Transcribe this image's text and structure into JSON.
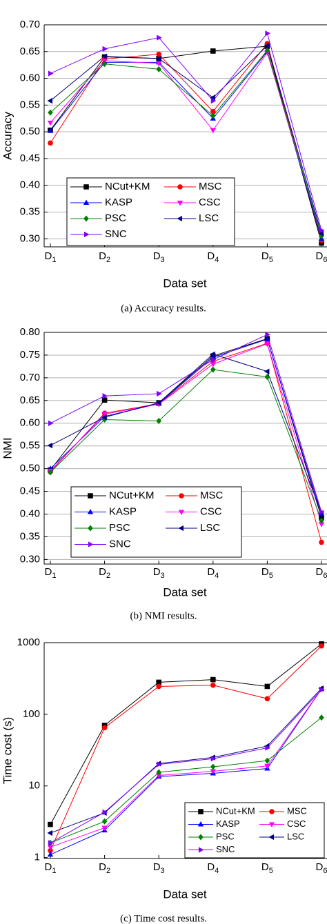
{
  "chart_data": [
    {
      "type": "line",
      "ylabel": "Accuracy",
      "xlabel": "Data set",
      "caption": "(a)  Accuracy results.",
      "categories": [
        "D1",
        "D2",
        "D3",
        "D4",
        "D5",
        "D6"
      ],
      "ylim": [
        0.285,
        0.7
      ],
      "yticks": [
        {
          "value": 0.3,
          "label": "0.30"
        },
        {
          "value": 0.35,
          "label": "0.35"
        },
        {
          "value": 0.4,
          "label": "0.40"
        },
        {
          "value": 0.45,
          "label": "0.45"
        },
        {
          "value": 0.5,
          "label": "0.50"
        },
        {
          "value": 0.55,
          "label": "0.55"
        },
        {
          "value": 0.6,
          "label": "0.60"
        },
        {
          "value": 0.65,
          "label": "0.65"
        },
        {
          "value": 0.7,
          "label": "0.70"
        }
      ],
      "grid": true,
      "legend": "lower left",
      "series": [
        {
          "name": "NCut+KM",
          "color": "#000000",
          "marker": "square",
          "values": [
            0.503,
            0.64,
            0.637,
            0.651,
            0.66,
            0.292
          ]
        },
        {
          "name": "MSC",
          "color": "#ff0000",
          "marker": "circle",
          "values": [
            0.479,
            0.636,
            0.645,
            0.538,
            0.665,
            0.297
          ]
        },
        {
          "name": "KASP",
          "color": "#0000ff",
          "marker": "triangle-up",
          "values": [
            0.502,
            0.63,
            0.63,
            0.525,
            0.65,
            0.3
          ]
        },
        {
          "name": "CSC",
          "color": "#ff00ff",
          "marker": "triangle-down",
          "values": [
            0.517,
            0.633,
            0.628,
            0.503,
            0.648,
            0.305
          ]
        },
        {
          "name": "PSC",
          "color": "#008000",
          "marker": "diamond",
          "values": [
            0.536,
            0.627,
            0.617,
            0.53,
            0.652,
            0.305
          ]
        },
        {
          "name": "LSC",
          "color": "#000080",
          "marker": "triangle-left",
          "values": [
            0.558,
            0.641,
            0.637,
            0.564,
            0.661,
            0.31
          ]
        },
        {
          "name": "SNC",
          "color": "#8000ff",
          "marker": "triangle-right",
          "values": [
            0.609,
            0.655,
            0.676,
            0.558,
            0.684,
            0.316
          ]
        }
      ]
    },
    {
      "type": "line",
      "ylabel": "NMI",
      "xlabel": "Data set",
      "caption": "(b)  NMI results.",
      "categories": [
        "D1",
        "D2",
        "D3",
        "D4",
        "D5",
        "D6"
      ],
      "ylim": [
        0.29,
        0.8
      ],
      "yticks": [
        {
          "value": 0.3,
          "label": "0.30"
        },
        {
          "value": 0.35,
          "label": "0.35"
        },
        {
          "value": 0.4,
          "label": "0.40"
        },
        {
          "value": 0.45,
          "label": "0.45"
        },
        {
          "value": 0.5,
          "label": "0.50"
        },
        {
          "value": 0.55,
          "label": "0.55"
        },
        {
          "value": 0.6,
          "label": "0.60"
        },
        {
          "value": 0.65,
          "label": "0.65"
        },
        {
          "value": 0.7,
          "label": "0.70"
        },
        {
          "value": 0.75,
          "label": "0.75"
        },
        {
          "value": 0.8,
          "label": "0.80"
        }
      ],
      "grid": true,
      "legend": "lower left",
      "series": [
        {
          "name": "NCut+KM",
          "color": "#000000",
          "marker": "square",
          "values": [
            0.497,
            0.651,
            0.645,
            0.748,
            0.786,
            0.392
          ]
        },
        {
          "name": "MSC",
          "color": "#ff0000",
          "marker": "circle",
          "values": [
            0.493,
            0.622,
            0.643,
            0.736,
            0.776,
            0.338
          ]
        },
        {
          "name": "KASP",
          "color": "#0000ff",
          "marker": "triangle-up",
          "values": [
            0.5,
            0.615,
            0.643,
            0.745,
            0.785,
            0.4
          ]
        },
        {
          "name": "CSC",
          "color": "#ff00ff",
          "marker": "triangle-down",
          "values": [
            0.495,
            0.62,
            0.642,
            0.73,
            0.775,
            0.378
          ]
        },
        {
          "name": "PSC",
          "color": "#008000",
          "marker": "diamond",
          "values": [
            0.492,
            0.608,
            0.605,
            0.718,
            0.702,
            0.386
          ]
        },
        {
          "name": "LSC",
          "color": "#000080",
          "marker": "triangle-left",
          "values": [
            0.551,
            0.613,
            0.645,
            0.752,
            0.714,
            0.402
          ]
        },
        {
          "name": "SNC",
          "color": "#8000ff",
          "marker": "triangle-right",
          "values": [
            0.6,
            0.66,
            0.665,
            0.74,
            0.795,
            0.405
          ]
        }
      ]
    },
    {
      "type": "line",
      "ylabel": "Time cost (s)",
      "xlabel": "Data set",
      "caption": "(c)  Time cost results.",
      "categories": [
        "D1",
        "D2",
        "D3",
        "D4",
        "D5",
        "D6"
      ],
      "log": true,
      "ylim": [
        0.97,
        1000
      ],
      "yticks": [
        1,
        10,
        100,
        1000
      ],
      "grid": false,
      "legend": "lower right",
      "series": [
        {
          "name": "NCut+KM",
          "color": "#000000",
          "marker": "square",
          "values": [
            2.9,
            70,
            280,
            305,
            245,
            960
          ]
        },
        {
          "name": "MSC",
          "color": "#ff0000",
          "marker": "circle",
          "values": [
            1.25,
            65,
            245,
            255,
            165,
            900
          ]
        },
        {
          "name": "KASP",
          "color": "#0000ff",
          "marker": "triangle-up",
          "values": [
            1.1,
            2.4,
            13.5,
            15,
            17.5,
            225
          ]
        },
        {
          "name": "CSC",
          "color": "#ff00ff",
          "marker": "triangle-down",
          "values": [
            1.4,
            2.6,
            14,
            16,
            19,
            225
          ]
        },
        {
          "name": "PSC",
          "color": "#008000",
          "marker": "diamond",
          "values": [
            1.6,
            3.2,
            15.5,
            18.5,
            22.5,
            90
          ]
        },
        {
          "name": "LSC",
          "color": "#000080",
          "marker": "triangle-left",
          "values": [
            2.2,
            4.2,
            20.5,
            25,
            36,
            230
          ]
        },
        {
          "name": "SNC",
          "color": "#8000ff",
          "marker": "triangle-right",
          "values": [
            1.6,
            4.3,
            20,
            24,
            34,
            220
          ]
        }
      ]
    }
  ]
}
